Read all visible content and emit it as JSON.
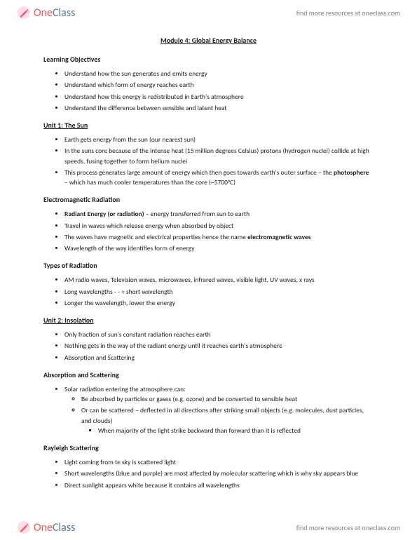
{
  "brand": {
    "one": "One",
    "class": "Class",
    "resource_text": "find more resources at oneclass.com"
  },
  "doc": {
    "title": "Module 4: Global Energy Balance",
    "sections": [
      {
        "heading": "Learning Objectives",
        "underline": false,
        "items": [
          {
            "text": "Understand how the sun generates and emits energy"
          },
          {
            "text": "Understand which form of energy reaches earth"
          },
          {
            "text": "Understand how this energy is redistributed in Earth's atmosphere"
          },
          {
            "text": "Understand the difference between sensible and latent heat"
          }
        ]
      },
      {
        "heading": "Unit 1: The Sun",
        "underline": true,
        "items": [
          {
            "text": "Earth gets energy from the sun (our nearest sun)"
          },
          {
            "text": "In the suns core because of the intense heat (15 million degrees Celsius) protons (hydrogen nuclei) collide at high speeds, fusing together to form helium nuclei"
          },
          {
            "pre": "This process generates large amount of energy which then goes towards earth's outer surface – the ",
            "bold": "photosphere",
            "post": " – which has much cooler temperatures than the core (~5700°C)"
          }
        ]
      },
      {
        "heading": "Electromagnetic Radiation",
        "underline": false,
        "items": [
          {
            "bold": "Radiant Energy (or radiation)",
            "post": " – energy transferred from sun to earth"
          },
          {
            "text": "Travel in waves which release energy when absorbed by object"
          },
          {
            "pre": "The waves have magnetic and electrical properties hence the name ",
            "bold": "electromagnetic waves"
          },
          {
            "text": "Wavelength of the way identifies form of energy"
          }
        ]
      },
      {
        "heading": "Types of Radiation",
        "underline": false,
        "items": [
          {
            "text": "AM radio waves, Television waves, microwaves, infrared waves, visible light, UV waves, x rays"
          },
          {
            "text": "Long wavelengths - - > short wavelength"
          },
          {
            "text": "Longer the wavelength, lower the energy"
          }
        ]
      },
      {
        "heading": "Unit 2: Insolation",
        "underline": true,
        "items": [
          {
            "text": "Only fraction of sun's constant radiation reaches earth"
          },
          {
            "text": "Nothing gets in the way of the radiant energy until it reaches earth's atmosphere"
          },
          {
            "text": "Absorption and Scattering"
          }
        ]
      },
      {
        "heading": "Absorption and Scattering",
        "underline": false,
        "items": [
          {
            "text": "Solar radiation entering the atmosphere can:",
            "children": [
              {
                "text": "Be absorbed by particles or gases (e.g. ozone) and be converted to sensible heat"
              },
              {
                "text": "Or can be scattered – deflected in all directions after striking small objects (e.g. molecules, dust particles, and clouds)",
                "children": [
                  {
                    "text": "When majority of the light strike backward than forward than it is reflected"
                  }
                ]
              }
            ]
          }
        ]
      },
      {
        "heading": "Rayleigh Scattering",
        "underline": false,
        "items": [
          {
            "text": "Light coming from te sky is scattered light"
          },
          {
            "text": "Short wavelengths (blue and purple) are most affected by molecular scattering which is why sky appears blue"
          },
          {
            "text": "Direct sunlight appears white because it contains all wavelengths"
          }
        ]
      }
    ]
  }
}
